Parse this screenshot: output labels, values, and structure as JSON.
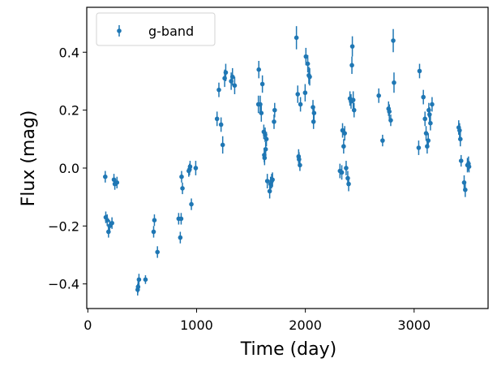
{
  "chart_data": {
    "type": "scatter",
    "xlabel": "Time (day)",
    "ylabel": "Flux (mag)",
    "xlim": [
      -10,
      3680
    ],
    "ylim": [
      -0.485,
      0.555
    ],
    "xticks": [
      0,
      1000,
      2000,
      3000
    ],
    "yticks": [
      -0.4,
      -0.2,
      0.0,
      0.2,
      0.4
    ],
    "xtick_labels": [
      "0",
      "1000",
      "2000",
      "3000"
    ],
    "ytick_labels": [
      "−0.4",
      "−0.2",
      "0.0",
      "0.2",
      "0.4"
    ],
    "grid": false,
    "legend": {
      "position": "top-left",
      "entries": [
        "g-band"
      ]
    },
    "series": [
      {
        "name": "g-band",
        "color": "#1f77b4",
        "points": [
          [
            160,
            -0.03,
            0.02
          ],
          [
            165,
            -0.17,
            0.02
          ],
          [
            178,
            -0.18,
            0.02
          ],
          [
            190,
            -0.22,
            0.02
          ],
          [
            200,
            -0.2,
            0.02
          ],
          [
            222,
            -0.19,
            0.02
          ],
          [
            240,
            -0.04,
            0.02
          ],
          [
            248,
            -0.055,
            0.02
          ],
          [
            268,
            -0.05,
            0.02
          ],
          [
            458,
            -0.42,
            0.02
          ],
          [
            462,
            -0.41,
            0.02
          ],
          [
            470,
            -0.385,
            0.02
          ],
          [
            530,
            -0.385,
            0.015
          ],
          [
            605,
            -0.22,
            0.02
          ],
          [
            612,
            -0.18,
            0.02
          ],
          [
            640,
            -0.29,
            0.02
          ],
          [
            835,
            -0.175,
            0.02
          ],
          [
            850,
            -0.24,
            0.02
          ],
          [
            858,
            -0.175,
            0.02
          ],
          [
            862,
            -0.03,
            0.02
          ],
          [
            870,
            -0.07,
            0.02
          ],
          [
            928,
            -0.01,
            0.02
          ],
          [
            935,
            -0.005,
            0.02
          ],
          [
            940,
            0.005,
            0.02
          ],
          [
            952,
            -0.125,
            0.02
          ],
          [
            992,
            0.0,
            0.025
          ],
          [
            1188,
            0.17,
            0.025
          ],
          [
            1205,
            0.27,
            0.025
          ],
          [
            1225,
            0.15,
            0.025
          ],
          [
            1240,
            0.08,
            0.03
          ],
          [
            1258,
            0.31,
            0.03
          ],
          [
            1268,
            0.33,
            0.03
          ],
          [
            1318,
            0.3,
            0.03
          ],
          [
            1330,
            0.315,
            0.03
          ],
          [
            1350,
            0.285,
            0.03
          ],
          [
            1568,
            0.22,
            0.03
          ],
          [
            1572,
            0.34,
            0.03
          ],
          [
            1585,
            0.22,
            0.03
          ],
          [
            1595,
            0.19,
            0.03
          ],
          [
            1605,
            0.29,
            0.03
          ],
          [
            1618,
            0.125,
            0.025
          ],
          [
            1622,
            0.045,
            0.025
          ],
          [
            1625,
            0.035,
            0.025
          ],
          [
            1630,
            0.115,
            0.025
          ],
          [
            1635,
            0.065,
            0.025
          ],
          [
            1642,
            0.1,
            0.025
          ],
          [
            1650,
            -0.045,
            0.025
          ],
          [
            1672,
            -0.08,
            0.025
          ],
          [
            1680,
            -0.055,
            0.025
          ],
          [
            1690,
            -0.045,
            0.025
          ],
          [
            1698,
            -0.04,
            0.025
          ],
          [
            1712,
            0.16,
            0.025
          ],
          [
            1718,
            0.2,
            0.025
          ],
          [
            1918,
            0.45,
            0.04
          ],
          [
            1930,
            0.255,
            0.03
          ],
          [
            1938,
            0.04,
            0.025
          ],
          [
            1942,
            0.03,
            0.025
          ],
          [
            1950,
            0.01,
            0.02
          ],
          [
            1955,
            0.22,
            0.025
          ],
          [
            1998,
            0.26,
            0.03
          ],
          [
            2005,
            0.385,
            0.03
          ],
          [
            2022,
            0.36,
            0.03
          ],
          [
            2032,
            0.32,
            0.03
          ],
          [
            2040,
            0.315,
            0.03
          ],
          [
            2070,
            0.21,
            0.025
          ],
          [
            2075,
            0.16,
            0.025
          ],
          [
            2080,
            0.19,
            0.025
          ],
          [
            2318,
            -0.01,
            0.025
          ],
          [
            2335,
            -0.015,
            0.025
          ],
          [
            2342,
            0.13,
            0.025
          ],
          [
            2352,
            0.075,
            0.025
          ],
          [
            2362,
            0.12,
            0.025
          ],
          [
            2375,
            0.0,
            0.025
          ],
          [
            2390,
            -0.035,
            0.025
          ],
          [
            2398,
            -0.055,
            0.025
          ],
          [
            2410,
            0.24,
            0.025
          ],
          [
            2420,
            0.23,
            0.025
          ],
          [
            2428,
            0.355,
            0.03
          ],
          [
            2432,
            0.42,
            0.035
          ],
          [
            2440,
            0.235,
            0.03
          ],
          [
            2448,
            0.2,
            0.025
          ],
          [
            2675,
            0.25,
            0.025
          ],
          [
            2710,
            0.095,
            0.02
          ],
          [
            2765,
            0.205,
            0.025
          ],
          [
            2772,
            0.195,
            0.025
          ],
          [
            2785,
            0.165,
            0.02
          ],
          [
            2808,
            0.44,
            0.04
          ],
          [
            2815,
            0.295,
            0.035
          ],
          [
            3042,
            0.07,
            0.025
          ],
          [
            3050,
            0.335,
            0.025
          ],
          [
            3085,
            0.245,
            0.025
          ],
          [
            3100,
            0.17,
            0.025
          ],
          [
            3110,
            0.12,
            0.025
          ],
          [
            3120,
            0.075,
            0.025
          ],
          [
            3130,
            0.095,
            0.025
          ],
          [
            3135,
            0.2,
            0.025
          ],
          [
            3142,
            0.185,
            0.025
          ],
          [
            3150,
            0.155,
            0.025
          ],
          [
            3165,
            0.22,
            0.025
          ],
          [
            3410,
            0.14,
            0.025
          ],
          [
            3418,
            0.13,
            0.025
          ],
          [
            3425,
            0.1,
            0.025
          ],
          [
            3432,
            0.025,
            0.02
          ],
          [
            3460,
            -0.05,
            0.025
          ],
          [
            3470,
            -0.075,
            0.025
          ],
          [
            3490,
            0.01,
            0.025
          ],
          [
            3500,
            0.015,
            0.025
          ],
          [
            3505,
            0.005,
            0.02
          ]
        ]
      }
    ]
  }
}
